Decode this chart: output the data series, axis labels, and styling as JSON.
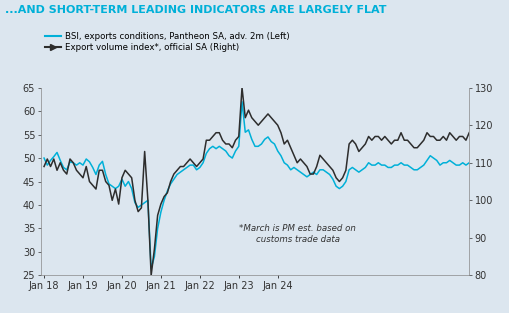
{
  "title": "...AND SHORT-TERM LEADING INDICATORS ARE LARGELY FLAT",
  "title_color": "#00b0d8",
  "background_color": "#dce6ef",
  "annotation": "*March is PM est. based on\ncustoms trade data",
  "ylim_left": [
    25,
    65
  ],
  "ylim_right": [
    80,
    130
  ],
  "yticks_left": [
    25,
    30,
    35,
    40,
    45,
    50,
    55,
    60,
    65
  ],
  "yticks_right": [
    80,
    90,
    100,
    110,
    120,
    130
  ],
  "color_bsi": "#00b0d8",
  "color_export": "#2d2d2d",
  "bsi_data": [
    50.0,
    48.5,
    49.5,
    50.3,
    51.2,
    49.5,
    48.0,
    47.5,
    49.2,
    49.0,
    48.5,
    49.0,
    48.5,
    49.8,
    49.2,
    48.0,
    46.5,
    48.5,
    49.3,
    46.5,
    44.5,
    44.0,
    43.5,
    44.0,
    45.5,
    44.0,
    45.0,
    43.5,
    40.5,
    39.5,
    40.0,
    40.5,
    41.0,
    26.5,
    29.0,
    35.0,
    38.5,
    41.0,
    43.0,
    44.5,
    45.5,
    46.5,
    47.0,
    47.5,
    48.0,
    48.5,
    48.5,
    47.5,
    48.0,
    49.0,
    51.0,
    52.0,
    52.5,
    52.0,
    52.5,
    52.0,
    51.5,
    50.5,
    50.0,
    51.5,
    52.5,
    62.0,
    55.5,
    56.0,
    54.0,
    52.5,
    52.5,
    53.0,
    54.0,
    54.5,
    53.5,
    53.0,
    51.5,
    50.5,
    49.0,
    48.5,
    47.5,
    48.0,
    47.5,
    47.0,
    46.5,
    46.0,
    46.5,
    47.0,
    46.5,
    47.5,
    47.5,
    47.0,
    46.5,
    45.5,
    44.0,
    43.5,
    44.0,
    45.0,
    47.5,
    48.0,
    47.5,
    47.0,
    47.5,
    48.0,
    49.0,
    48.5,
    48.5,
    49.0,
    48.5,
    48.5,
    48.0,
    48.0,
    48.5,
    48.5,
    49.0,
    48.5,
    48.5,
    48.0,
    47.5,
    47.5,
    48.0,
    48.5,
    49.5,
    50.5,
    50.0,
    49.5,
    48.5,
    49.0,
    49.0,
    49.5,
    49.0,
    48.5,
    48.5,
    49.0,
    48.5,
    49.0
  ],
  "export_right": [
    109,
    111,
    109,
    111,
    108,
    110,
    108,
    107,
    111,
    110,
    108,
    107,
    106,
    109,
    105,
    104,
    103,
    108,
    108,
    105,
    104,
    100,
    103,
    99,
    106,
    108,
    107,
    106,
    100,
    97,
    98,
    113,
    100,
    80,
    87,
    96,
    99,
    101,
    102,
    105,
    107,
    108,
    109,
    109,
    110,
    111,
    110,
    109,
    110,
    111,
    116,
    116,
    117,
    118,
    118,
    116,
    115,
    115,
    114,
    116,
    117,
    130,
    122,
    124,
    122,
    121,
    120,
    121,
    122,
    123,
    122,
    121,
    120,
    118,
    115,
    116,
    114,
    112,
    110,
    111,
    110,
    109,
    107,
    107,
    109,
    112,
    111,
    110,
    109,
    108,
    106,
    105,
    106,
    108,
    115,
    116,
    115,
    113,
    114,
    115,
    117,
    116,
    117,
    117,
    116,
    117,
    116,
    115,
    116,
    116,
    118,
    116,
    116,
    115,
    114,
    114,
    115,
    116,
    118,
    117,
    117,
    116,
    116,
    117,
    116,
    118,
    117,
    116,
    117,
    117,
    116,
    118
  ],
  "n_months": 132,
  "x_tick_positions": [
    0,
    12,
    24,
    36,
    48,
    60,
    72
  ],
  "x_tick_labels": [
    "Jan 18",
    "Jan 19",
    "Jan 20",
    "Jan 21",
    "Jan 22",
    "Jan 23",
    "Jan 24"
  ]
}
